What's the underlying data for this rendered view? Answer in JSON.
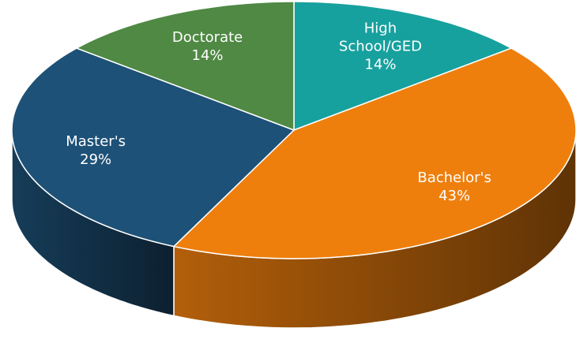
{
  "chart_data": {
    "type": "pie",
    "categories": [
      "High School/GED",
      "Bachelor's",
      "Master's",
      "Doctorate"
    ],
    "values": [
      14,
      43,
      29,
      14
    ],
    "value_labels": [
      "14%",
      "43%",
      "29%",
      "14%"
    ],
    "colors": [
      "#17a19e",
      "#ee7f0d",
      "#1d5177",
      "#4f8944"
    ],
    "start_angle": 0,
    "direction": "clockwise",
    "three_d": true
  }
}
